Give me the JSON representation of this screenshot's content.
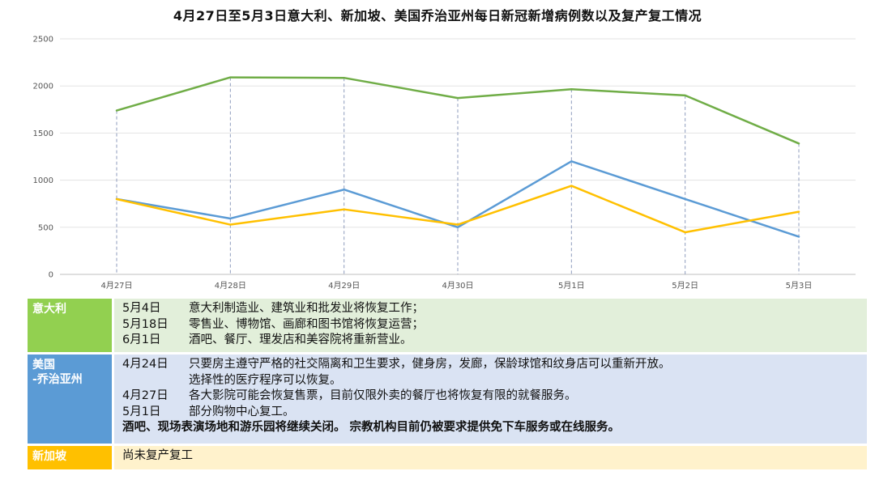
{
  "title": "4月27日至5月3日意大利、新加坡、美国乔治亚州每日新冠新增病例数以及复产复工情况",
  "chart_data": {
    "type": "line",
    "title": "4月27日至5月3日意大利、新加坡、美国乔治亚州每日新冠新增病例数以及复产复工情况",
    "categories": [
      "4月27日",
      "4月28日",
      "4月29日",
      "4月30日",
      "5月1日",
      "5月2日",
      "5月3日"
    ],
    "ylim": [
      0,
      2500
    ],
    "yticks": [
      0,
      500,
      1000,
      1500,
      2000,
      2500
    ],
    "grid": true,
    "legend": "none",
    "series": [
      {
        "color": "#70ad47",
        "values": [
          1739,
          2091,
          2086,
          1872,
          1965,
          1900,
          1389
        ]
      },
      {
        "color": "#5b9bd5",
        "values": [
          800,
          593,
          900,
          500,
          1200,
          800,
          400
        ]
      },
      {
        "color": "#ffc000",
        "values": [
          799,
          528,
          690,
          528,
          940,
          447,
          665
        ]
      }
    ]
  },
  "table": {
    "italy": {
      "label": "意大利",
      "lines": [
        {
          "date": "5月4日",
          "text": "意大利制造业、建筑业和批发业将恢复工作；"
        },
        {
          "date": "5月18日",
          "text": "零售业、博物馆、画廊和图书馆将恢复运营；"
        },
        {
          "date": "6月1日",
          "text": "酒吧、餐厅、理发店和美容院将重新营业。"
        }
      ]
    },
    "us": {
      "label_line1": "美国",
      "label_line2": "-乔治亚州",
      "line1_date": "4月24日",
      "line1_text": "只要房主遵守严格的社交隔离和卫生要求，健身房，发廊，保龄球馆和纹身店可以重新开放。",
      "line1_cont": "选择性的医疗程序可以恢复。",
      "line2_date": "4月27日",
      "line2_text": "各大影院可能会恢复售票，目前仅限外卖的餐厅也将恢复有限的就餐服务。",
      "line3_date": "5月1日",
      "line3_text": "部分购物中心复工。",
      "note": "酒吧、现场表演场地和游乐园将继续关闭。 宗教机构目前仍被要求提供免下车服务或在线服务。"
    },
    "singapore": {
      "label": "新加坡",
      "text": "尚未复产复工"
    }
  }
}
